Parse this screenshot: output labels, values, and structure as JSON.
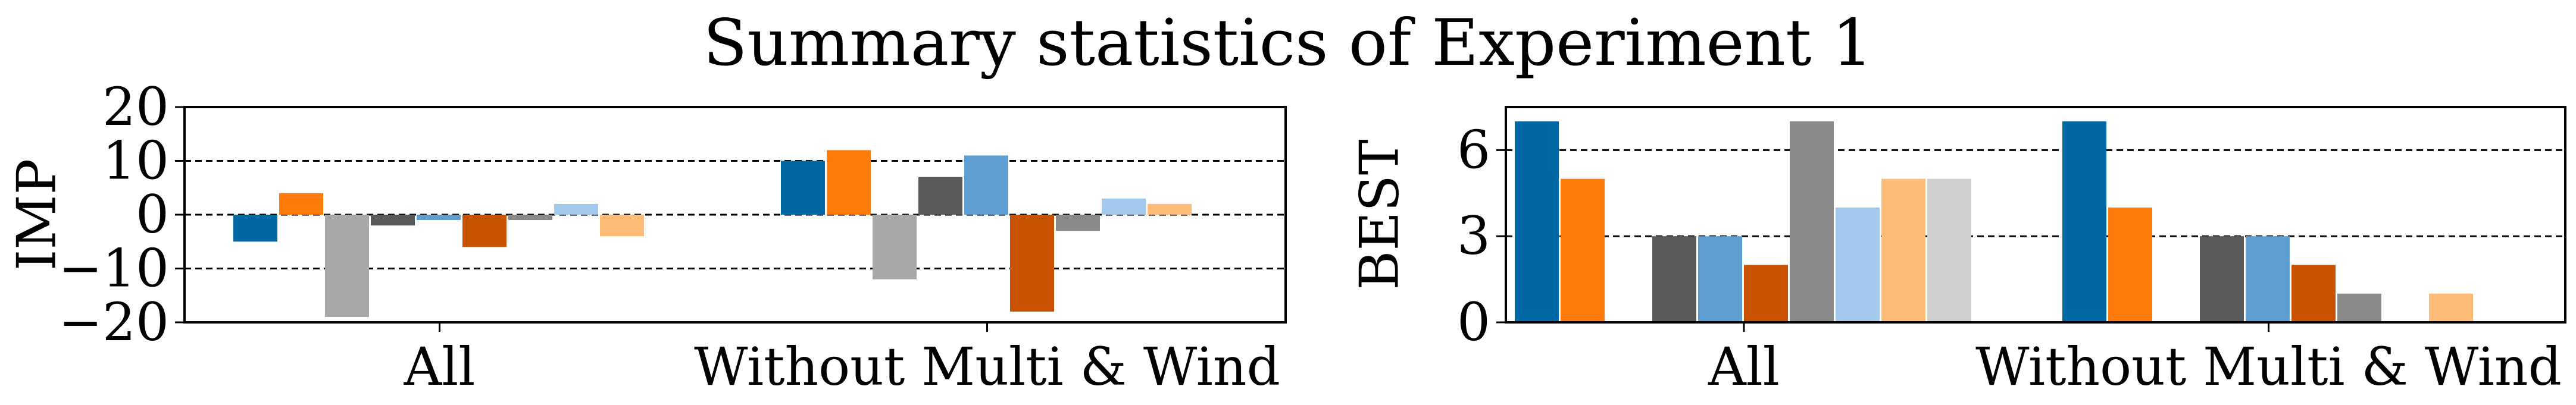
{
  "title": "Summary statistics of Experiment 1",
  "colors": [
    "#0068a4",
    "#ff7c0c",
    "#a8a8a8",
    "#595959",
    "#5f9ed1",
    "#c85200",
    "#898989",
    "#a2c8ec",
    "#ffbc79",
    "#cfcfcf"
  ],
  "chart_data": [
    {
      "type": "bar",
      "ylabel": "IMP",
      "xlabel": "",
      "categories": [
        "All",
        "Without Multi & Wind"
      ],
      "ylim": [
        -20,
        20
      ],
      "yticks": [
        20,
        10,
        0,
        -10,
        -20
      ],
      "ytick_labels": [
        "20",
        "10",
        "0",
        "−10",
        "−20"
      ],
      "hlines": [
        10,
        0,
        -10
      ],
      "groups": [
        {
          "category": "All",
          "bars": [
            {
              "color_index": 0,
              "value": -5
            },
            {
              "color_index": 1,
              "value": 4
            },
            {
              "color_index": 2,
              "value": -19
            },
            {
              "color_index": 3,
              "value": -2
            },
            {
              "color_index": 4,
              "value": -1
            },
            {
              "color_index": 5,
              "value": -6
            },
            {
              "color_index": 6,
              "value": -1
            },
            {
              "color_index": 7,
              "value": 2
            },
            {
              "color_index": 8,
              "value": -4
            }
          ]
        },
        {
          "category": "Without Multi & Wind",
          "bars": [
            {
              "color_index": 0,
              "value": 10
            },
            {
              "color_index": 1,
              "value": 12
            },
            {
              "color_index": 2,
              "value": -12
            },
            {
              "color_index": 3,
              "value": 7
            },
            {
              "color_index": 4,
              "value": 11
            },
            {
              "color_index": 5,
              "value": -18
            },
            {
              "color_index": 6,
              "value": -3
            },
            {
              "color_index": 7,
              "value": 3
            },
            {
              "color_index": 8,
              "value": 2
            }
          ]
        }
      ]
    },
    {
      "type": "bar",
      "ylabel": "BEST",
      "xlabel": "",
      "categories": [
        "All",
        "Without Multi & Wind"
      ],
      "ylim": [
        0,
        7.5
      ],
      "yticks": [
        0,
        3,
        6
      ],
      "ytick_labels": [
        "0",
        "3",
        "6"
      ],
      "hlines": [
        3,
        6
      ],
      "groups": [
        {
          "category": "All",
          "bars": [
            {
              "color_index": 0,
              "value": 7
            },
            {
              "color_index": 1,
              "value": 5
            },
            {
              "color_index": 3,
              "value": 3
            },
            {
              "color_index": 4,
              "value": 3
            },
            {
              "color_index": 5,
              "value": 2
            },
            {
              "color_index": 6,
              "value": 7
            },
            {
              "color_index": 7,
              "value": 4
            },
            {
              "color_index": 8,
              "value": 5
            },
            {
              "color_index": 9,
              "value": 5
            }
          ]
        },
        {
          "category": "Without Multi & Wind",
          "bars": [
            {
              "color_index": 0,
              "value": 7
            },
            {
              "color_index": 1,
              "value": 4
            },
            {
              "color_index": 3,
              "value": 3
            },
            {
              "color_index": 4,
              "value": 3
            },
            {
              "color_index": 5,
              "value": 2
            },
            {
              "color_index": 6,
              "value": 1
            },
            {
              "color_index": 8,
              "value": 1
            }
          ]
        }
      ]
    }
  ]
}
